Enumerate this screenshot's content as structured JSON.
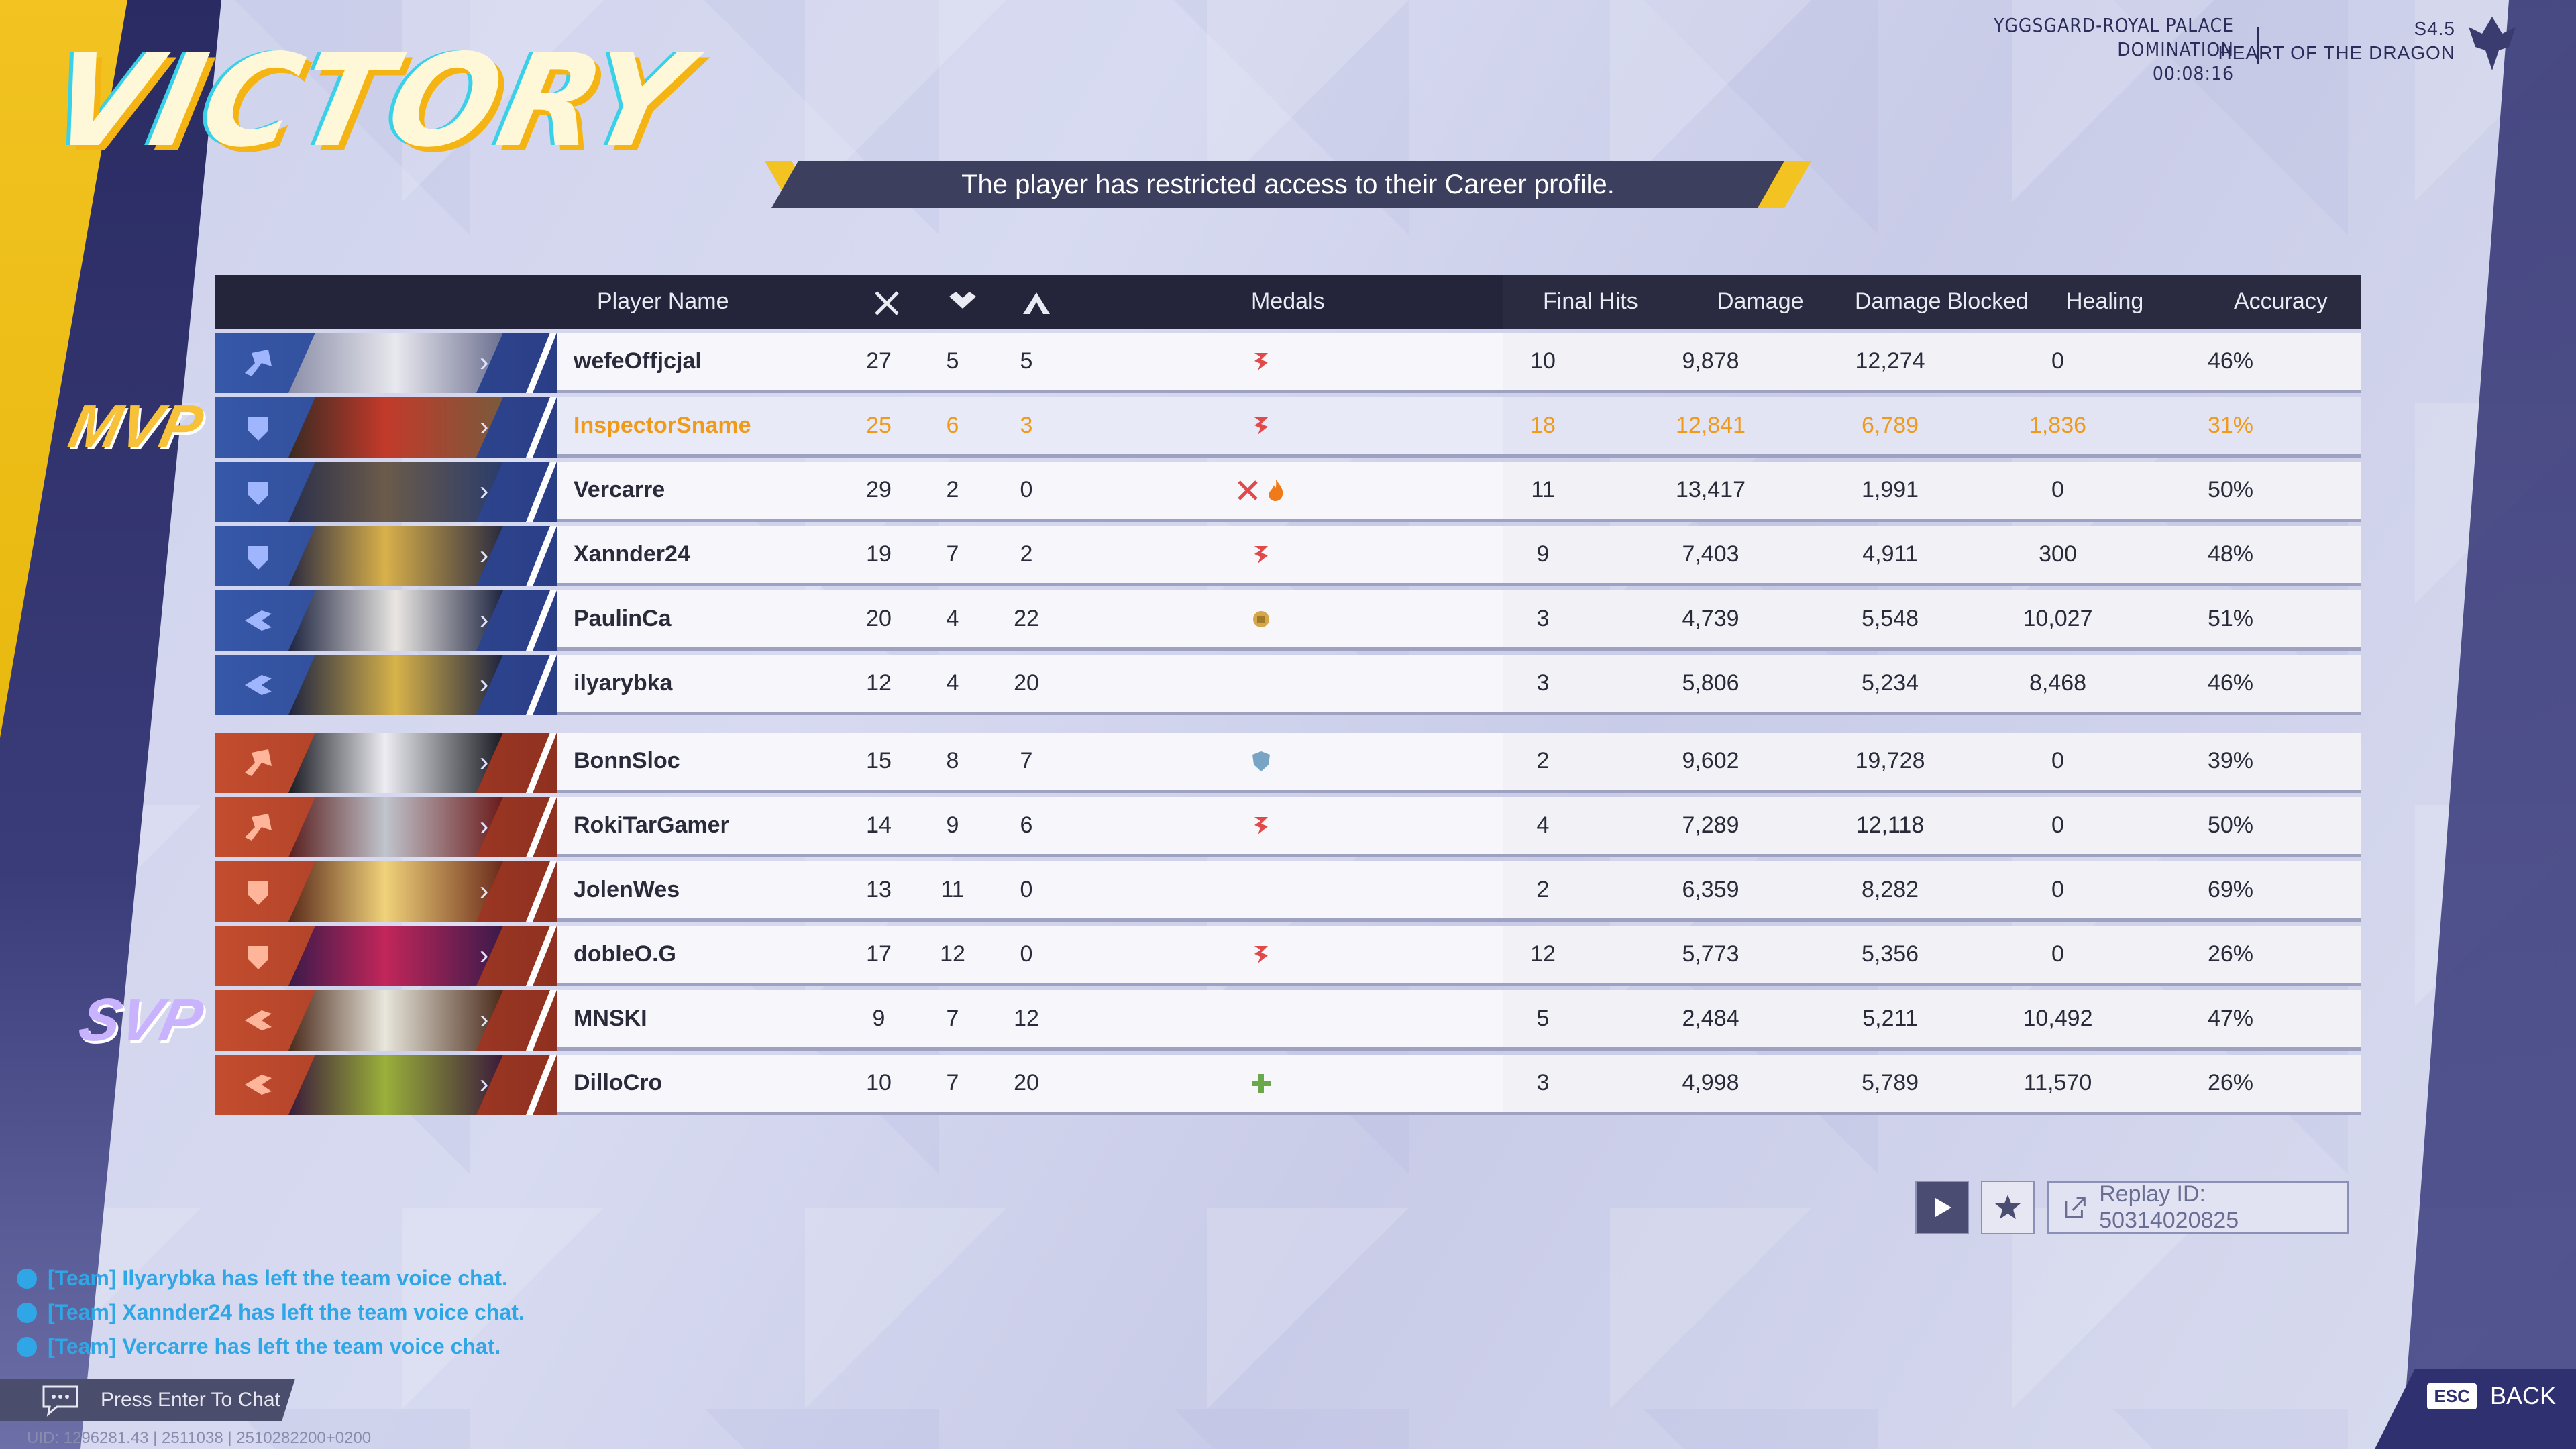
{
  "title": "VICTORY",
  "match": {
    "map": "YGGSGARD-ROYAL PALACE",
    "mode": "DOMINATION",
    "time": "00:08:16",
    "season": "S4.5",
    "season_name": "HEART OF THE DRAGON"
  },
  "banner": "The player has restricted access to their Career profile.",
  "headers": {
    "name": "Player Name",
    "medals": "Medals",
    "final_hits": "Final Hits",
    "damage": "Damage",
    "damage_blocked": "Damage Blocked",
    "healing": "Healing",
    "accuracy": "Accuracy"
  },
  "labels": {
    "mvp": "MVP",
    "svp": "SVP"
  },
  "team_blue": [
    {
      "name": "wefeOffjcjal",
      "k": "27",
      "d": "5",
      "a": "5",
      "fh": "10",
      "dmg": "9,878",
      "blk": "12,274",
      "heal": "0",
      "acc": "46%"
    },
    {
      "name": "InspectorSname",
      "k": "25",
      "d": "6",
      "a": "3",
      "fh": "18",
      "dmg": "12,841",
      "blk": "6,789",
      "heal": "1,836",
      "acc": "31%"
    },
    {
      "name": "Vercarre",
      "k": "29",
      "d": "2",
      "a": "0",
      "fh": "11",
      "dmg": "13,417",
      "blk": "1,991",
      "heal": "0",
      "acc": "50%"
    },
    {
      "name": "Xannder24",
      "k": "19",
      "d": "7",
      "a": "2",
      "fh": "9",
      "dmg": "7,403",
      "blk": "4,911",
      "heal": "300",
      "acc": "48%"
    },
    {
      "name": "PaulinCa",
      "k": "20",
      "d": "4",
      "a": "22",
      "fh": "3",
      "dmg": "4,739",
      "blk": "5,548",
      "heal": "10,027",
      "acc": "51%"
    },
    {
      "name": "ilyarybka",
      "k": "12",
      "d": "4",
      "a": "20",
      "fh": "3",
      "dmg": "5,806",
      "blk": "5,234",
      "heal": "8,468",
      "acc": "46%"
    }
  ],
  "team_red": [
    {
      "name": "BonnSloc",
      "k": "15",
      "d": "8",
      "a": "7",
      "fh": "2",
      "dmg": "9,602",
      "blk": "19,728",
      "heal": "0",
      "acc": "39%"
    },
    {
      "name": "RokiTarGamer",
      "k": "14",
      "d": "9",
      "a": "6",
      "fh": "4",
      "dmg": "7,289",
      "blk": "12,118",
      "heal": "0",
      "acc": "50%"
    },
    {
      "name": "JolenWes",
      "k": "13",
      "d": "11",
      "a": "0",
      "fh": "2",
      "dmg": "6,359",
      "blk": "8,282",
      "heal": "0",
      "acc": "69%"
    },
    {
      "name": "dobleO.G",
      "k": "17",
      "d": "12",
      "a": "0",
      "fh": "12",
      "dmg": "5,773",
      "blk": "5,356",
      "heal": "0",
      "acc": "26%"
    },
    {
      "name": "MNSKI",
      "k": "9",
      "d": "7",
      "a": "12",
      "fh": "5",
      "dmg": "2,484",
      "blk": "5,211",
      "heal": "10,492",
      "acc": "47%"
    },
    {
      "name": "DilloCro",
      "k": "10",
      "d": "7",
      "a": "20",
      "fh": "3",
      "dmg": "4,998",
      "blk": "5,789",
      "heal": "11,570",
      "acc": "26%"
    }
  ],
  "replay": {
    "label": "Replay ID: 50314020825"
  },
  "chat": {
    "lines": [
      "[Team] Ilyarybka has left the team voice chat.",
      "[Team] Xannder24 has left the team voice chat.",
      "[Team] Vercarre has left the team voice chat."
    ],
    "placeholder": "Press Enter To Chat"
  },
  "uid": "UID: 1296281.43 | 2511038 | 2510282200+0200",
  "back": {
    "key": "ESC",
    "label": "BACK"
  },
  "colors": {
    "blue_team": "#3658a8",
    "red_team": "#c34d2e",
    "mvp_highlight": "#f09a1a",
    "accent_yellow": "#f2c321"
  }
}
